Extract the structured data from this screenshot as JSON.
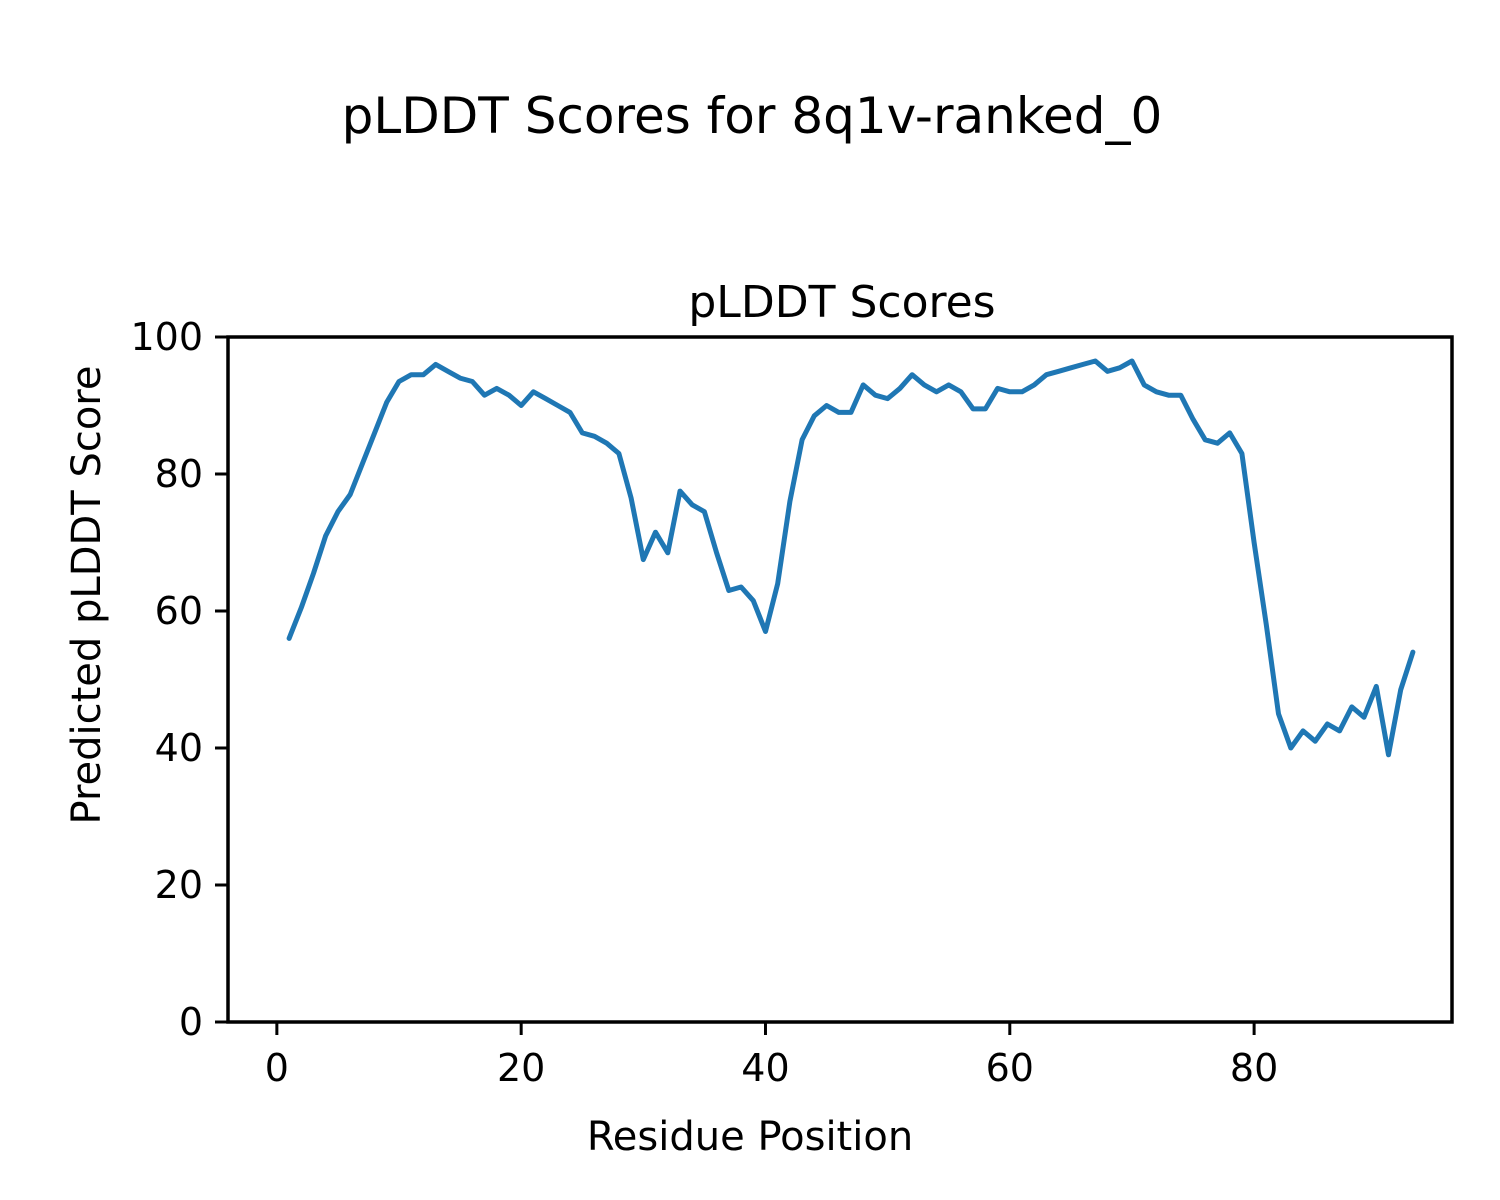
{
  "page": {
    "background": "#ffffff",
    "text_color": "#000000"
  },
  "suptitle": "pLDDT Scores for 8q1v-ranked_0",
  "chart_data": {
    "type": "line",
    "title": "pLDDT Scores",
    "xlabel": "Residue Position",
    "ylabel": "Predicted pLDDT Score",
    "series": [
      {
        "name": "pLDDT",
        "color": "#1f77b4",
        "x": [
          1,
          2,
          3,
          4,
          5,
          6,
          7,
          8,
          9,
          10,
          11,
          12,
          13,
          14,
          15,
          16,
          17,
          18,
          19,
          20,
          21,
          22,
          23,
          24,
          25,
          26,
          27,
          28,
          29,
          30,
          31,
          32,
          33,
          34,
          35,
          36,
          37,
          38,
          39,
          40,
          41,
          42,
          43,
          44,
          45,
          46,
          47,
          48,
          49,
          50,
          51,
          52,
          53,
          54,
          55,
          56,
          57,
          58,
          59,
          60,
          61,
          62,
          63,
          64,
          65,
          66,
          67,
          68,
          69,
          70,
          71,
          72,
          73,
          74,
          75,
          76,
          77,
          78,
          79,
          80,
          81,
          82,
          83,
          84,
          85,
          86,
          87,
          88,
          89,
          90,
          91,
          92,
          93
        ],
        "values": [
          56,
          60.5,
          65.5,
          71,
          74.5,
          77,
          81.5,
          86,
          90.5,
          93.5,
          94.5,
          94.5,
          96,
          95,
          94,
          93.5,
          91.5,
          92.5,
          91.5,
          90,
          92,
          91,
          90,
          89,
          86,
          85.5,
          84.5,
          83,
          76.5,
          67.5,
          71.5,
          68.5,
          77.5,
          75.5,
          74.5,
          68.5,
          63,
          63.5,
          61.5,
          57,
          64,
          76,
          85,
          88.5,
          90,
          89,
          89,
          93,
          91.5,
          91,
          92.5,
          94.5,
          93,
          92,
          93,
          92,
          89.5,
          89.5,
          92.5,
          92,
          92,
          93,
          94.5,
          95,
          95.5,
          96,
          96.5,
          95,
          95.5,
          96.5,
          93,
          92,
          91.5,
          91.5,
          88,
          85,
          84.5,
          86,
          83,
          70,
          58,
          45,
          40,
          42.5,
          41,
          43.5,
          42.5,
          46,
          44.5,
          49,
          39,
          48.5,
          54
        ]
      }
    ],
    "xlim": [
      -4,
      96.2
    ],
    "ylim": [
      0,
      100
    ],
    "xticks": [
      "0",
      "20",
      "40",
      "60",
      "80"
    ],
    "xtick_values": [
      0,
      20,
      40,
      60,
      80
    ],
    "yticks": [
      "0",
      "20",
      "40",
      "60",
      "80",
      "100"
    ],
    "ytick_values": [
      0,
      20,
      40,
      60,
      80,
      100
    ],
    "grid": false,
    "legend": "none",
    "line_color": "#1f77b4",
    "axis_color": "#000000"
  }
}
